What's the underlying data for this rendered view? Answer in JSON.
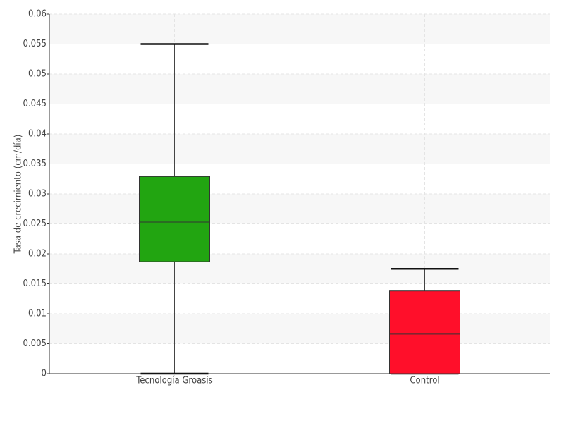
{
  "chart_data": {
    "type": "box",
    "y_label": "Tasa de crecimiento (cm/día)",
    "categories": [
      "Tecnología Groasis",
      "Control"
    ],
    "boxes": [
      {
        "min": 0,
        "q1": 0.0187,
        "median": 0.0253,
        "q3": 0.0329,
        "max": 0.055,
        "color": "#22a511"
      },
      {
        "min": 0,
        "q1": 0,
        "median": 0.0066,
        "q3": 0.0138,
        "max": 0.0175,
        "color": "#ff0f2a"
      }
    ],
    "ylim": [
      0,
      0.06
    ],
    "yticks": [
      0,
      0.005,
      0.01,
      0.015,
      0.02,
      0.025,
      0.03,
      0.035,
      0.04,
      0.045,
      0.05,
      0.055,
      0.06
    ],
    "grid": true
  }
}
